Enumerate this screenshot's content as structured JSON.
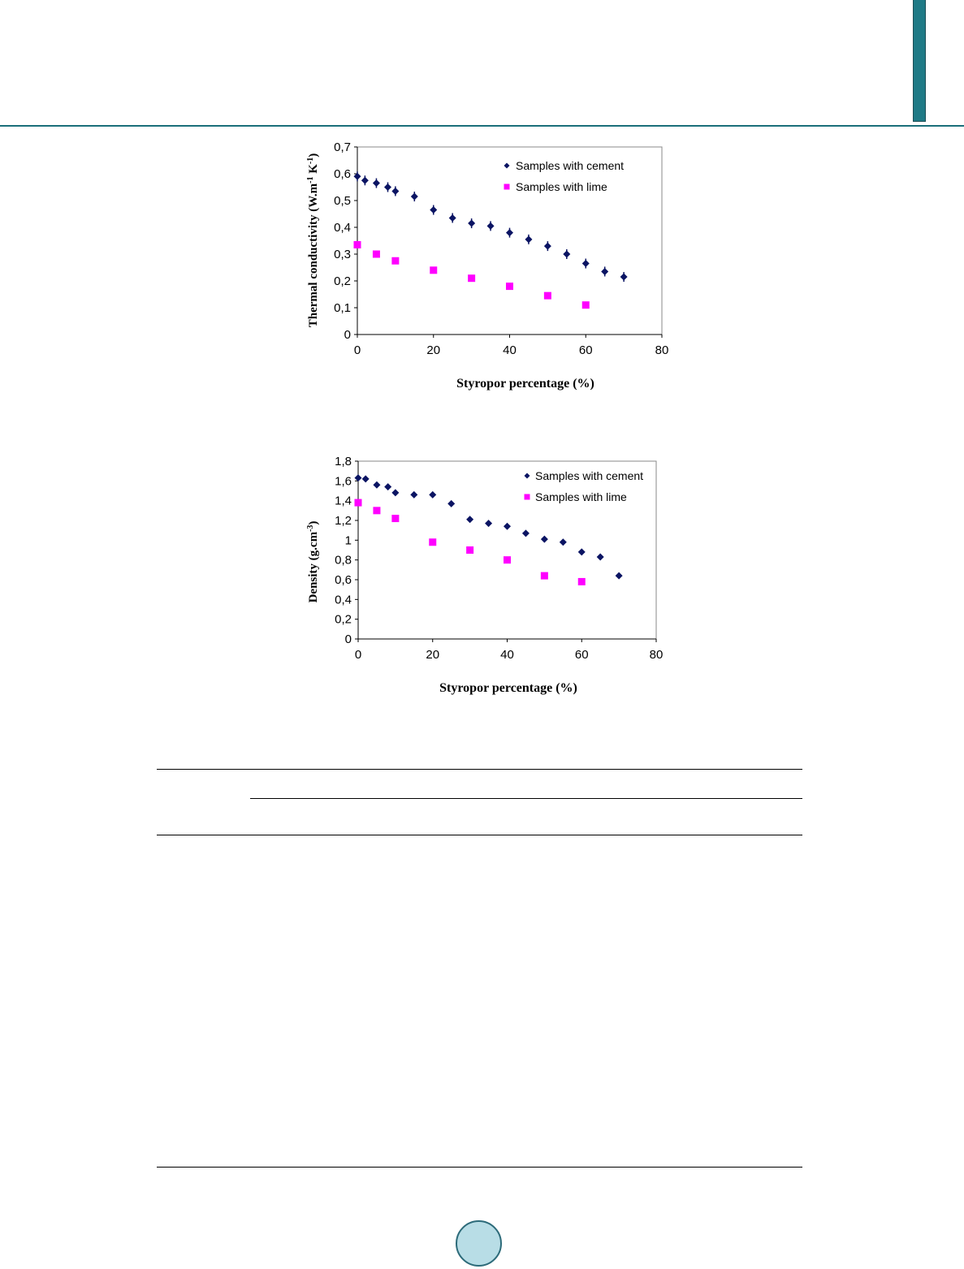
{
  "header": {
    "accent_color": "#1b6f7a",
    "tab_fill": "#1f7a86",
    "circle_fill": "#b8dde6"
  },
  "chart_data": [
    {
      "type": "scatter",
      "title": "",
      "ylabel": "Thermal conductivity (W.m",
      "ylabel_sup1": "-1",
      "ylabel_mid": " K",
      "ylabel_sup2": "-1",
      "ylabel_end": ")",
      "xlabel": "Styropor percentage (%)",
      "xlim": [
        0,
        80
      ],
      "ylim": [
        0,
        0.7
      ],
      "x_ticks": [
        "0",
        "20",
        "40",
        "60",
        "80"
      ],
      "y_ticks": [
        "0",
        "0,1",
        "0,2",
        "0,3",
        "0,4",
        "0,5",
        "0,6",
        "0,7"
      ],
      "legend_position": "top-right",
      "grid": false,
      "error_bars": true,
      "series": [
        {
          "name": "Samples with cement",
          "marker": "diamond",
          "color": "#0b1463",
          "x": [
            0,
            2,
            5,
            8,
            10,
            15,
            20,
            25,
            30,
            35,
            40,
            45,
            50,
            55,
            60,
            65,
            70
          ],
          "y": [
            0.59,
            0.575,
            0.565,
            0.55,
            0.535,
            0.515,
            0.465,
            0.435,
            0.415,
            0.405,
            0.38,
            0.355,
            0.33,
            0.3,
            0.265,
            0.235,
            0.215
          ]
        },
        {
          "name": "Samples with lime",
          "marker": "square",
          "color": "#ff00ff",
          "x": [
            0,
            5,
            10,
            20,
            30,
            40,
            50,
            60
          ],
          "y": [
            0.335,
            0.3,
            0.275,
            0.24,
            0.21,
            0.18,
            0.145,
            0.11
          ]
        }
      ]
    },
    {
      "type": "scatter",
      "title": "",
      "ylabel": "Density (g.cm",
      "ylabel_sup1": "-3",
      "ylabel_end": ")",
      "xlabel": "Styropor percentage (%)",
      "xlim": [
        0,
        80
      ],
      "ylim": [
        0,
        1.8
      ],
      "x_ticks": [
        "0",
        "20",
        "40",
        "60",
        "80"
      ],
      "y_ticks": [
        "0",
        "0,2",
        "0,4",
        "0,6",
        "0,8",
        "1",
        "1,2",
        "1,4",
        "1,6",
        "1,8"
      ],
      "legend_position": "top-right",
      "grid": false,
      "series": [
        {
          "name": "Samples with cement",
          "marker": "diamond",
          "color": "#0b1463",
          "x": [
            0,
            2,
            5,
            8,
            10,
            15,
            20,
            25,
            30,
            35,
            40,
            45,
            50,
            55,
            60,
            65,
            70
          ],
          "y": [
            1.63,
            1.62,
            1.56,
            1.54,
            1.48,
            1.46,
            1.46,
            1.37,
            1.21,
            1.17,
            1.14,
            1.07,
            1.01,
            0.98,
            0.88,
            0.83,
            0.64
          ]
        },
        {
          "name": "Samples with lime",
          "marker": "square",
          "color": "#ff00ff",
          "x": [
            0,
            5,
            10,
            20,
            30,
            40,
            50,
            60
          ],
          "y": [
            1.38,
            1.3,
            1.22,
            0.98,
            0.9,
            0.8,
            0.64,
            0.58
          ]
        }
      ]
    }
  ]
}
